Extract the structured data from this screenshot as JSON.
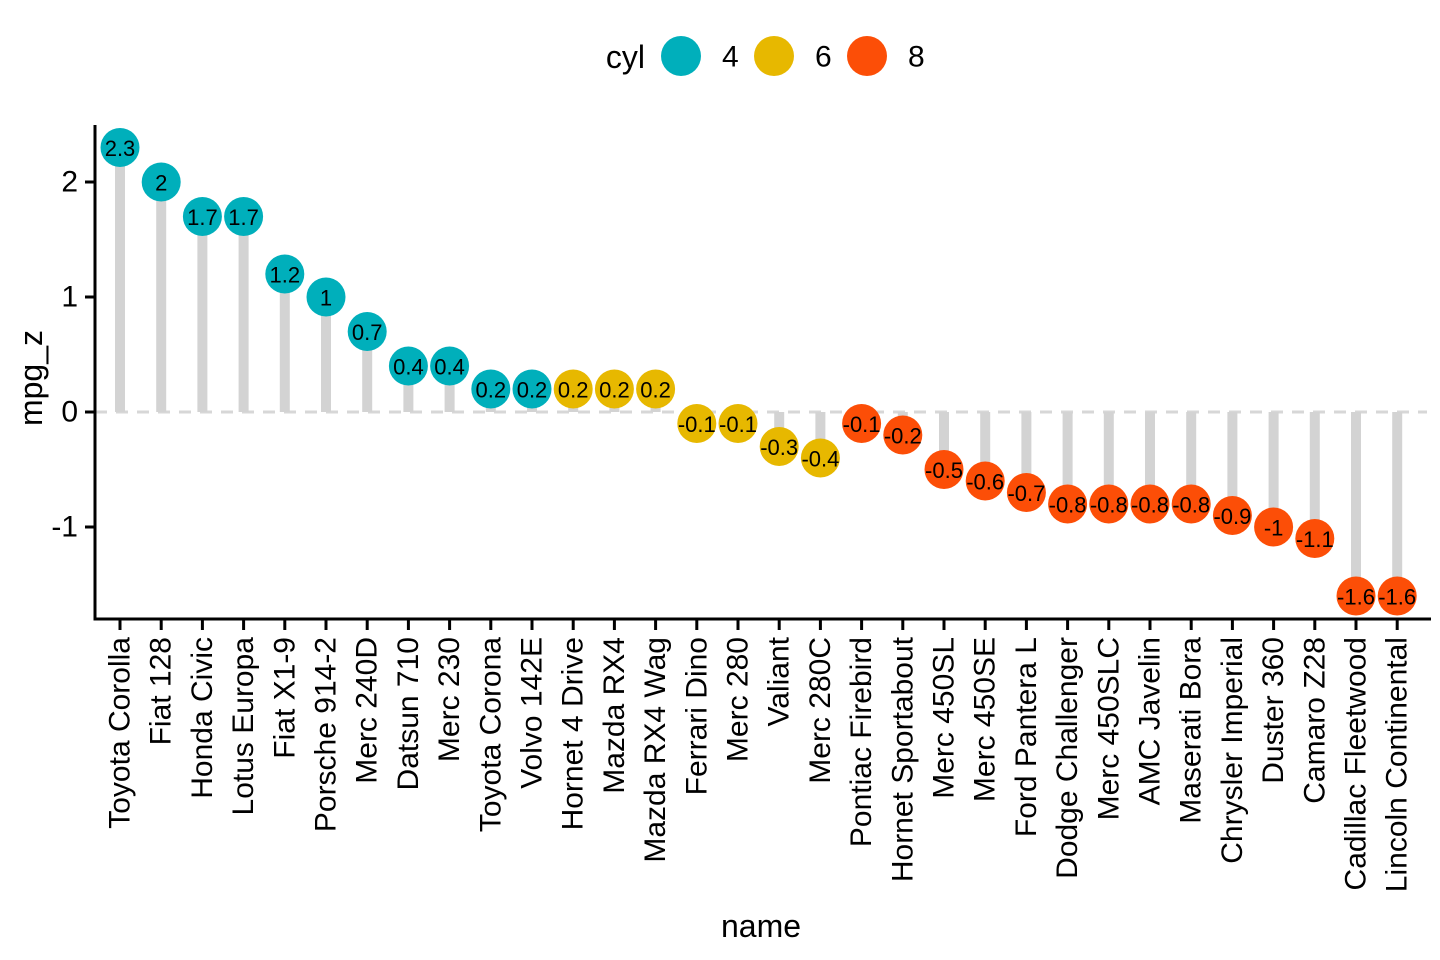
{
  "legend": {
    "title": "cyl",
    "items": [
      {
        "label": "4",
        "color": "#00AFBB"
      },
      {
        "label": "6",
        "color": "#E7B800"
      },
      {
        "label": "8",
        "color": "#FC4E07"
      }
    ]
  },
  "chart_data": {
    "type": "bar",
    "variant": "lollipop",
    "title": "",
    "xlabel": "name",
    "ylabel": "mpg_z",
    "ylim": [
      -1.8,
      2.5
    ],
    "yticks": [
      2,
      1,
      0,
      -1
    ],
    "grid": false,
    "zero_reference_line": "dashed",
    "legend_position": "top",
    "group_field": "cyl",
    "group_colors": {
      "4": "#00AFBB",
      "6": "#E7B800",
      "8": "#FC4E07"
    },
    "stem_color": "#D3D3D3",
    "dashed_line_color": "#D7D7D7",
    "dot_label_color": "#FFFFFF",
    "axis_color": "#000000",
    "points": [
      {
        "name": "Toyota Corolla",
        "cyl": "4",
        "value": 2.3,
        "label": "2.3"
      },
      {
        "name": "Fiat 128",
        "cyl": "4",
        "value": 2,
        "label": "2"
      },
      {
        "name": "Honda Civic",
        "cyl": "4",
        "value": 1.7,
        "label": "1.7"
      },
      {
        "name": "Lotus Europa",
        "cyl": "4",
        "value": 1.7,
        "label": "1.7"
      },
      {
        "name": "Fiat X1-9",
        "cyl": "4",
        "value": 1.2,
        "label": "1.2"
      },
      {
        "name": "Porsche 914-2",
        "cyl": "4",
        "value": 1,
        "label": "1"
      },
      {
        "name": "Merc 240D",
        "cyl": "4",
        "value": 0.7,
        "label": "0.7"
      },
      {
        "name": "Datsun 710",
        "cyl": "4",
        "value": 0.4,
        "label": "0.4"
      },
      {
        "name": "Merc 230",
        "cyl": "4",
        "value": 0.4,
        "label": "0.4"
      },
      {
        "name": "Toyota Corona",
        "cyl": "4",
        "value": 0.2,
        "label": "0.2"
      },
      {
        "name": "Volvo 142E",
        "cyl": "4",
        "value": 0.2,
        "label": "0.2"
      },
      {
        "name": "Hornet 4 Drive",
        "cyl": "6",
        "value": 0.2,
        "label": "0.2"
      },
      {
        "name": "Mazda RX4",
        "cyl": "6",
        "value": 0.2,
        "label": "0.2"
      },
      {
        "name": "Mazda RX4 Wag",
        "cyl": "6",
        "value": 0.2,
        "label": "0.2"
      },
      {
        "name": "Ferrari Dino",
        "cyl": "6",
        "value": -0.1,
        "label": "-0.1"
      },
      {
        "name": "Merc 280",
        "cyl": "6",
        "value": -0.1,
        "label": "-0.1"
      },
      {
        "name": "Valiant",
        "cyl": "6",
        "value": -0.3,
        "label": "-0.3"
      },
      {
        "name": "Merc 280C",
        "cyl": "6",
        "value": -0.4,
        "label": "-0.4"
      },
      {
        "name": "Pontiac Firebird",
        "cyl": "8",
        "value": -0.1,
        "label": "-0.1"
      },
      {
        "name": "Hornet Sportabout",
        "cyl": "8",
        "value": -0.2,
        "label": "-0.2"
      },
      {
        "name": "Merc 450SL",
        "cyl": "8",
        "value": -0.5,
        "label": "-0.5"
      },
      {
        "name": "Merc 450SE",
        "cyl": "8",
        "value": -0.6,
        "label": "-0.6"
      },
      {
        "name": "Ford Pantera L",
        "cyl": "8",
        "value": -0.7,
        "label": "-0.7"
      },
      {
        "name": "Dodge Challenger",
        "cyl": "8",
        "value": -0.8,
        "label": "-0.8"
      },
      {
        "name": "Merc 450SLC",
        "cyl": "8",
        "value": -0.8,
        "label": "-0.8"
      },
      {
        "name": "AMC Javelin",
        "cyl": "8",
        "value": -0.8,
        "label": "-0.8"
      },
      {
        "name": "Maserati Bora",
        "cyl": "8",
        "value": -0.8,
        "label": "-0.8"
      },
      {
        "name": "Chrysler Imperial",
        "cyl": "8",
        "value": -0.9,
        "label": "-0.9"
      },
      {
        "name": "Duster 360",
        "cyl": "8",
        "value": -1,
        "label": "-1"
      },
      {
        "name": "Camaro Z28",
        "cyl": "8",
        "value": -1.1,
        "label": "-1.1"
      },
      {
        "name": "Cadillac Fleetwood",
        "cyl": "8",
        "value": -1.6,
        "label": "-1.6"
      },
      {
        "name": "Lincoln Continental",
        "cyl": "8",
        "value": -1.6,
        "label": "-1.6"
      }
    ]
  }
}
